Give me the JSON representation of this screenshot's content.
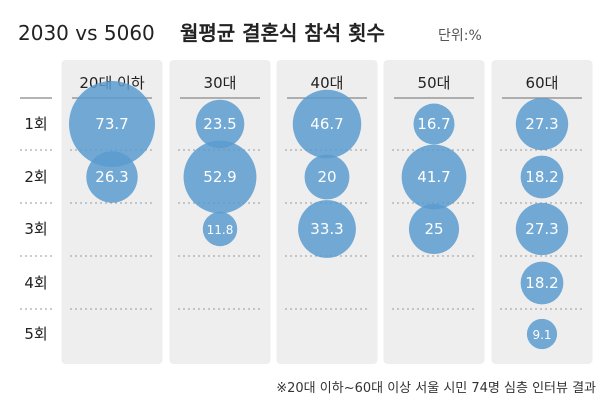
{
  "chart_data": {
    "type": "bubble-matrix",
    "title_light": "2030 vs 5060",
    "title_bold": "월평균 결혼식 참석 횟수",
    "unit_label": "단위:%",
    "columns": [
      "20대 이하",
      "30대",
      "40대",
      "50대",
      "60대"
    ],
    "rows": [
      "1회",
      "2회",
      "3회",
      "4회",
      "5회"
    ],
    "values": [
      [
        73.7,
        26.3,
        null,
        null,
        null
      ],
      [
        23.5,
        52.9,
        11.8,
        null,
        null
      ],
      [
        46.7,
        20,
        33.3,
        null,
        null
      ],
      [
        16.7,
        41.7,
        25,
        null,
        null
      ],
      [
        27.3,
        18.2,
        27.3,
        18.2,
        9.1
      ]
    ],
    "value_labels": [
      [
        "73.7",
        "26.3",
        null,
        null,
        null
      ],
      [
        "23.5",
        "52.9",
        "11.8",
        null,
        null
      ],
      [
        "46.7",
        "20",
        "33.3",
        null,
        null
      ],
      [
        "16.7",
        "41.7",
        "25",
        null,
        null
      ],
      [
        "27.3",
        "18.2",
        "27.3",
        "18.2",
        "9.1"
      ]
    ],
    "note": "※20대 이하~60대 이상 서울 시민 74명 심층 인터뷰 결과",
    "colors": {
      "bubble": "#5b9bcf",
      "bubble_text": "#ffffff",
      "panel": "#eeeeee",
      "title": "#222222",
      "muted": "#555555"
    }
  }
}
